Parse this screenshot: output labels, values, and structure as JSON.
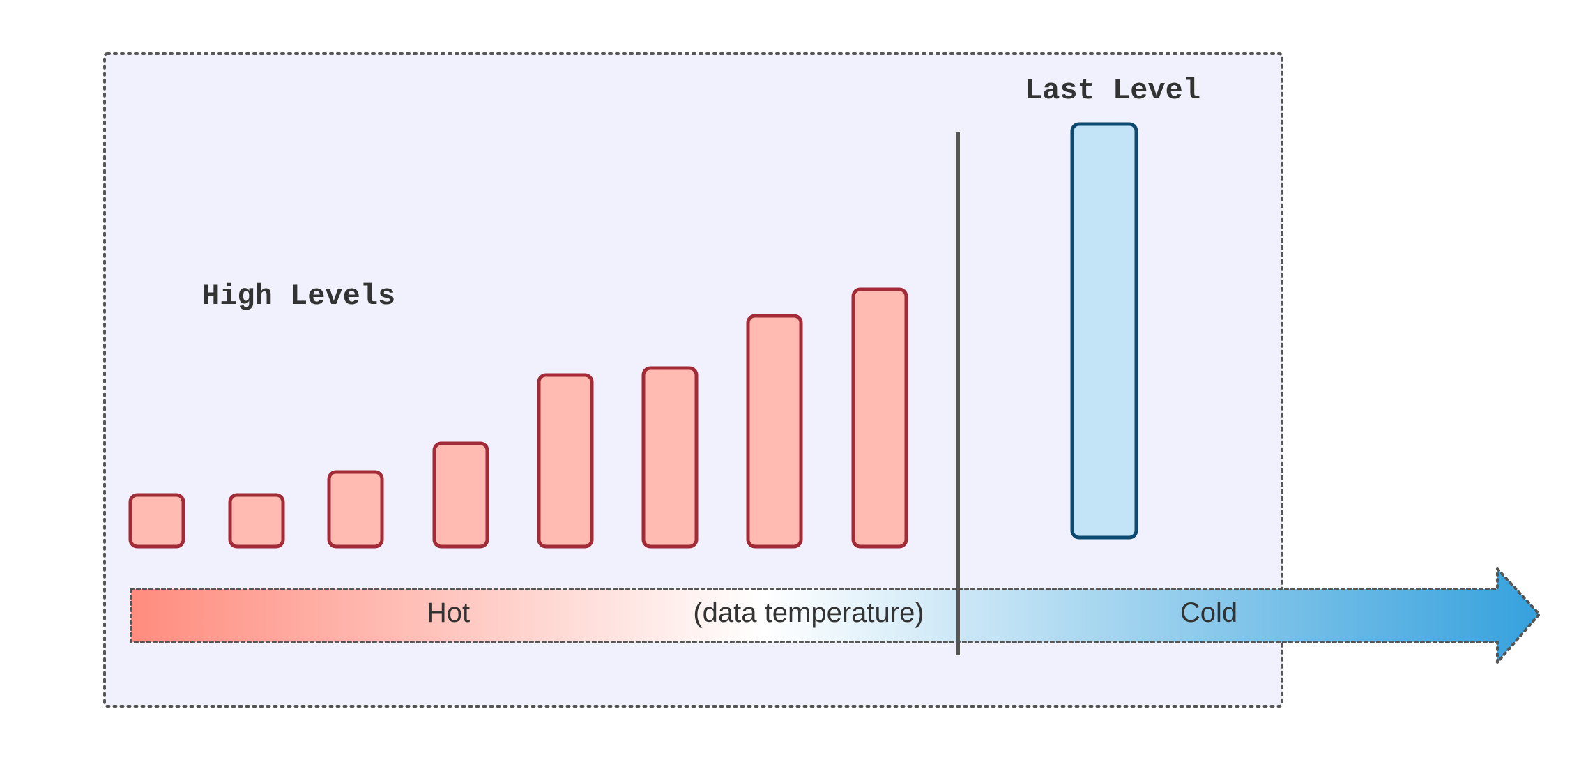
{
  "diagram": {
    "high_levels_label": "High Levels",
    "last_level_label": "Last Level",
    "arrow": {
      "hot_label": "Hot",
      "middle_label": "(data temperature)",
      "cold_label": "Cold"
    },
    "colors": {
      "panel_fill": "#f1f1fd",
      "panel_border": "#555555",
      "high_level_fill": "#ffbbb1",
      "high_level_stroke": "#a32b37",
      "last_level_fill": "#c3e4f6",
      "last_level_stroke": "#0d4a70",
      "divider": "#555555",
      "arrow_hot": "#ff8c7e",
      "arrow_mid": "#ffffff",
      "arrow_cold": "#35a1dd"
    },
    "high_level_count": 8,
    "last_level_count": 1
  }
}
